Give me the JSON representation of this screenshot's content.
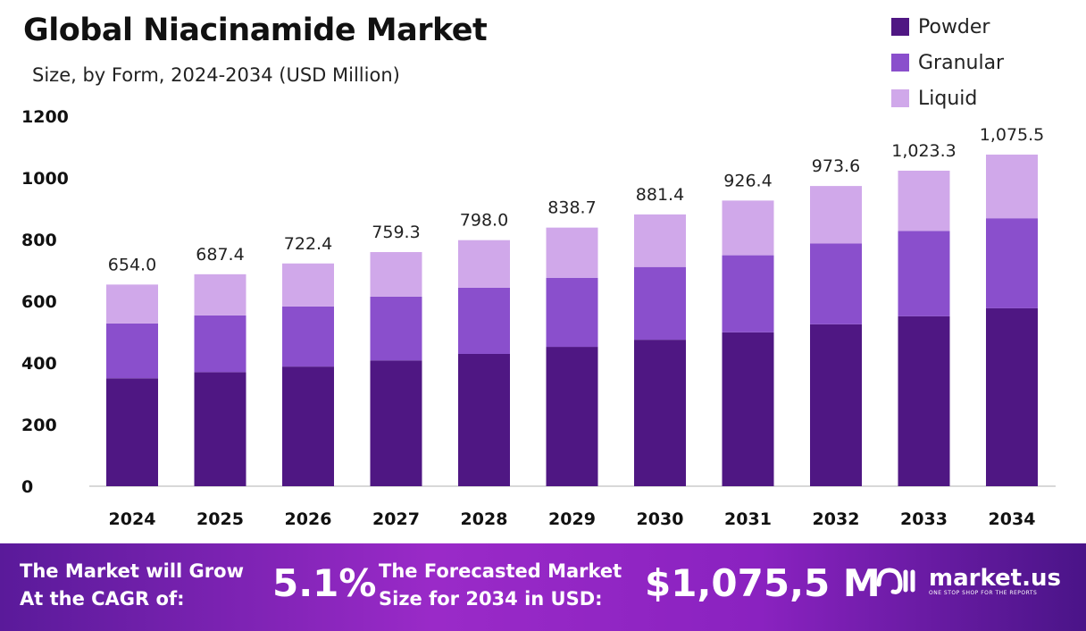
{
  "chart_data": {
    "type": "bar",
    "stacked": true,
    "title": "Global Niacinamide Market",
    "subtitle": "Size, by Form, 2024-2034 (USD Million)",
    "categories": [
      "2024",
      "2025",
      "2026",
      "2027",
      "2028",
      "2029",
      "2030",
      "2031",
      "2032",
      "2033",
      "2034"
    ],
    "series": [
      {
        "name": "Powder",
        "color": "#4f1783",
        "values": [
          350,
          370,
          388,
          408,
          429,
          452,
          475,
          499,
          525,
          551,
          577
        ]
      },
      {
        "name": "Granular",
        "color": "#8a4fcc",
        "values": [
          178,
          184,
          195,
          207,
          215,
          224,
          236,
          250,
          262,
          277,
          292
        ]
      },
      {
        "name": "Liquid",
        "color": "#d0a8ea",
        "values": [
          126,
          133.4,
          139.4,
          144.3,
          154,
          162.7,
          170.4,
          177.4,
          186.6,
          195.3,
          206.5
        ]
      }
    ],
    "totals_labels": [
      "654.0",
      "687.4",
      "722.4",
      "759.3",
      "798.0",
      "838.7",
      "881.4",
      "926.4",
      "973.6",
      "1,023.3",
      "1,075.5"
    ],
    "totals": [
      654.0,
      687.4,
      722.4,
      759.3,
      798.0,
      838.7,
      881.4,
      926.4,
      973.6,
      1023.3,
      1075.5
    ],
    "yticks": [
      "0",
      "200",
      "400",
      "600",
      "800",
      "1000",
      "1200"
    ],
    "ylim": [
      0,
      1200
    ],
    "grid": false,
    "legend_position": "top-right",
    "xlabel": "",
    "ylabel": ""
  },
  "banner": {
    "cagr_label_1": "The Market will Grow",
    "cagr_label_2": "At the CAGR of:",
    "cagr_value": "5.1%",
    "forecast_label_1": "The Forecasted Market",
    "forecast_label_2": "Size for 2034 in USD:",
    "forecast_value": "$1,075,5 M",
    "logo_text": "market.us",
    "logo_tagline": "ONE STOP SHOP FOR THE REPORTS"
  }
}
